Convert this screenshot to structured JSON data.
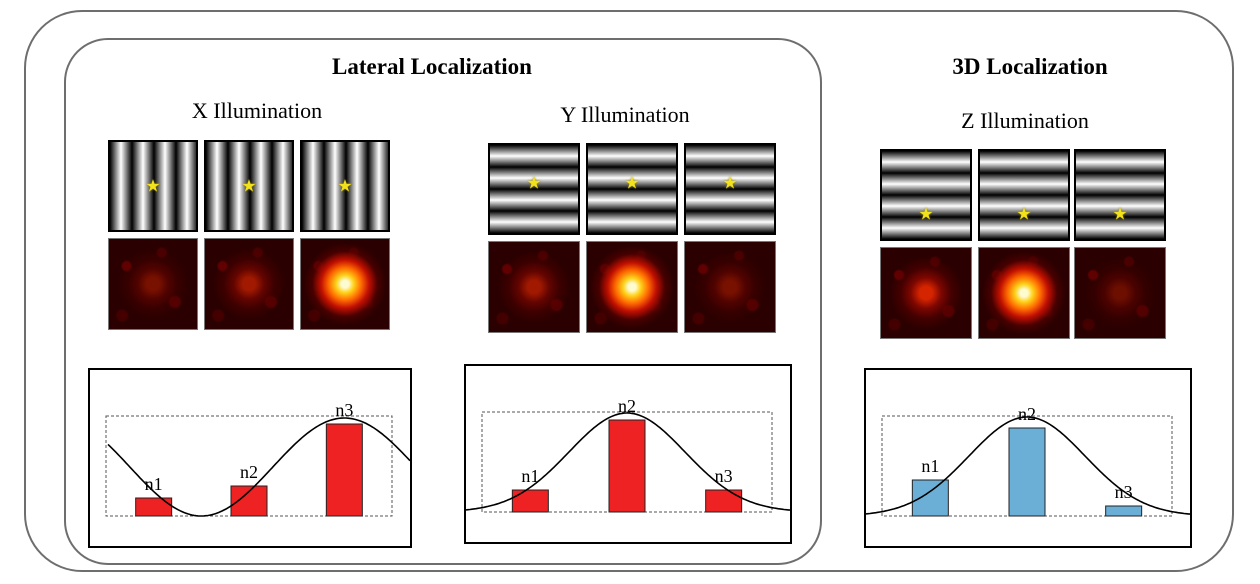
{
  "sections": {
    "lateral_title": "Lateral Localization",
    "threed_title": "3D Localization"
  },
  "groups": [
    {
      "title": "X Illumination",
      "orientation": "vertical",
      "intensities": [
        0.3,
        0.45,
        1.0
      ],
      "star_offsets": [
        0.5,
        0.5,
        0.5
      ],
      "bar_color": "#ee2222",
      "chart_data": {
        "type": "bar",
        "categories": [
          "n1",
          "n2",
          "n3"
        ],
        "values": [
          0.18,
          0.3,
          0.92
        ],
        "curve": "cosine"
      }
    },
    {
      "title": "Y Illumination",
      "orientation": "horizontal",
      "intensities": [
        0.45,
        1.0,
        0.3
      ],
      "star_offsets": [
        0.43,
        0.43,
        0.43
      ],
      "bar_color": "#ee2222",
      "chart_data": {
        "type": "bar",
        "categories": [
          "n1",
          "n2",
          "n3"
        ],
        "values": [
          0.22,
          0.92,
          0.22
        ],
        "curve": "gaussian"
      }
    },
    {
      "title": "Z Illumination",
      "orientation": "horizontal",
      "intensities": [
        0.65,
        1.0,
        0.25
      ],
      "star_offsets": [
        0.72,
        0.72,
        0.72
      ],
      "bar_color": "#6baed6",
      "chart_data": {
        "type": "bar",
        "categories": [
          "n1",
          "n2",
          "n3"
        ],
        "values": [
          0.36,
          0.88,
          0.1
        ],
        "curve": "gaussian"
      }
    }
  ]
}
